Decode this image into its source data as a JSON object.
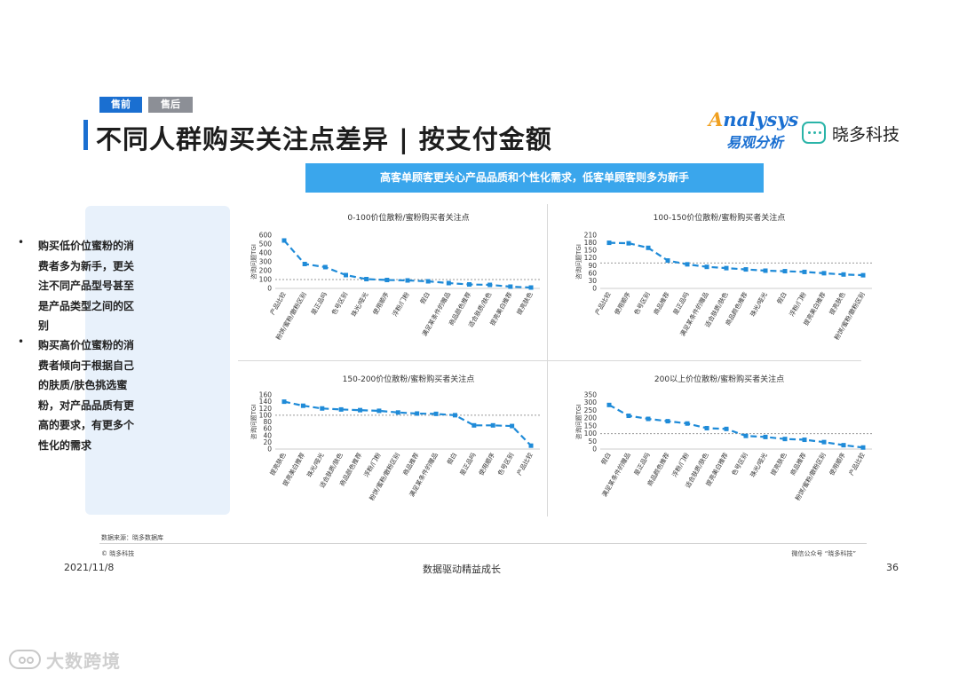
{
  "tags": {
    "pre": "售前",
    "post": "售后"
  },
  "title": "不同人群购买关注点差异 | 按支付金额",
  "logos": {
    "analysys_en": "nalysys",
    "analysys_en_letter": "A",
    "analysys_cn": "易观分析",
    "xiaoduo": "晓多科技"
  },
  "banner": "高客单顾客更关心产品品质和个性化需求，低客单顾客则多为新手",
  "bullets": [
    {
      "marker": "•",
      "text": "购买低价位蜜粉的消费者多为新手，更关注不同产品型号甚至是产品类型之间的区别"
    },
    {
      "marker": "•",
      "text": "购买高价位蜜粉的消费者倾向于根据自己的肤质/肤色挑选蜜粉，对产品品质有更高的要求，有更多个性化的需求"
    }
  ],
  "chart_data": [
    {
      "type": "line",
      "title": "0-100价位散粉/蜜粉购买者关注点",
      "ylabel": "咨询问题TGI",
      "ylim": [
        0,
        600
      ],
      "yticks": [
        0,
        100,
        200,
        300,
        400,
        500,
        600
      ],
      "reference_line": 100,
      "categories": [
        "产品比较",
        "粉饼/蜜粉/散粉区别",
        "是正品吗",
        "色号区别",
        "珠光/哑光",
        "使用顺序",
        "浮粉/门粉",
        "假白",
        "满足某条件的赠品",
        "商品颜色推荐",
        "适合肤质/肤色",
        "提亮美白推荐",
        "提亮肤色"
      ],
      "values": [
        540,
        275,
        240,
        150,
        105,
        95,
        90,
        80,
        60,
        45,
        40,
        20,
        10
      ],
      "color": "#1f8bd8"
    },
    {
      "type": "line",
      "title": "100-150价位散粉/蜜粉购买者关注点",
      "ylabel": "咨询问题TGI",
      "ylim": [
        0,
        210
      ],
      "yticks": [
        0,
        30,
        60,
        90,
        120,
        150,
        180,
        210
      ],
      "reference_line": 100,
      "categories": [
        "产品比较",
        "使用顺序",
        "色号区别",
        "商品推荐",
        "是正品吗",
        "满足某条件的赠品",
        "适合肤质/肤色",
        "商品颜色推荐",
        "珠光/哑光",
        "假白",
        "浮粉/门粉",
        "提亮美白推荐",
        "提亮肤色",
        "粉饼/蜜粉/散粉区别"
      ],
      "values": [
        180,
        178,
        160,
        110,
        95,
        85,
        80,
        75,
        70,
        68,
        65,
        60,
        55,
        52
      ],
      "color": "#1f8bd8"
    },
    {
      "type": "line",
      "title": "150-200价位散粉/蜜粉购买者关注点",
      "ylabel": "咨询问题TGI",
      "ylim": [
        0,
        160
      ],
      "yticks": [
        0,
        20,
        40,
        60,
        80,
        100,
        120,
        140,
        160
      ],
      "reference_line": 100,
      "categories": [
        "提亮肤色",
        "提亮美白推荐",
        "珠光/哑光",
        "适合肤质/肤色",
        "商品颜色推荐",
        "浮粉/门粉",
        "粉饼/蜜粉/散粉区别",
        "商品推荐",
        "满足某条件的赠品",
        "假白",
        "是正品吗",
        "使用顺序",
        "色号区别",
        "产品比较"
      ],
      "values": [
        140,
        128,
        120,
        117,
        115,
        113,
        108,
        105,
        104,
        100,
        70,
        70,
        68,
        10
      ],
      "color": "#1f8bd8"
    },
    {
      "type": "line",
      "title": "200以上价位散粉/蜜粉购买者关注点",
      "ylabel": "咨询问题TGI",
      "ylim": [
        0,
        350
      ],
      "yticks": [
        0,
        50,
        100,
        150,
        200,
        250,
        300,
        350
      ],
      "reference_line": 100,
      "categories": [
        "假白",
        "满足某条件的赠品",
        "是正品吗",
        "商品颜色推荐",
        "浮粉/门粉",
        "适合肤质/肤色",
        "提亮美白推荐",
        "色号区别",
        "珠光/哑光",
        "提亮肤色",
        "商品推荐",
        "粉饼/蜜粉/散粉区别",
        "使用顺序",
        "产品比较"
      ],
      "values": [
        285,
        215,
        195,
        180,
        165,
        135,
        130,
        85,
        78,
        65,
        60,
        45,
        25,
        10
      ],
      "color": "#1f8bd8"
    }
  ],
  "footer": {
    "source": "数据来源：晓多数据库",
    "copyright": "© 晓多科技",
    "wechat": "微信公众号 “晓多科技”",
    "date": "2021/11/8",
    "center": "数据驱动精益成长",
    "page": "36"
  },
  "watermark": "大数跨境"
}
